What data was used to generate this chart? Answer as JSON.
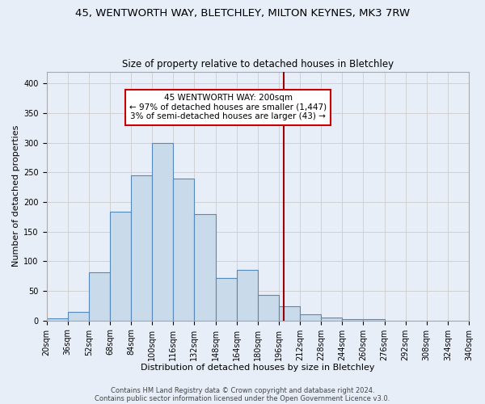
{
  "title1": "45, WENTWORTH WAY, BLETCHLEY, MILTON KEYNES, MK3 7RW",
  "title2": "Size of property relative to detached houses in Bletchley",
  "xlabel": "Distribution of detached houses by size in Bletchley",
  "ylabel": "Number of detached properties",
  "bin_edges": [
    20,
    36,
    52,
    68,
    84,
    100,
    116,
    132,
    148,
    164,
    180,
    196,
    212,
    228,
    244,
    260,
    276,
    292,
    308,
    324,
    340
  ],
  "bars_data": [
    4,
    14,
    81,
    184,
    245,
    300,
    240,
    180,
    72,
    86,
    43,
    24,
    11,
    5,
    3,
    3,
    0,
    0,
    0,
    0
  ],
  "bar_color": "#c9daea",
  "bar_edge_color": "#5588bb",
  "grid_color": "#cccccc",
  "bg_color": "#e8eef8",
  "red_line_x": 200,
  "red_line_color": "#990000",
  "annotation_text": "45 WENTWORTH WAY: 200sqm\n← 97% of detached houses are smaller (1,447)\n3% of semi-detached houses are larger (43) →",
  "annotation_box_color": "#ffffff",
  "annotation_box_edge_color": "#cc0000",
  "footer1": "Contains HM Land Registry data © Crown copyright and database right 2024.",
  "footer2": "Contains public sector information licensed under the Open Government Licence v3.0.",
  "ylim": [
    0,
    420
  ],
  "yticks": [
    0,
    50,
    100,
    150,
    200,
    250,
    300,
    350,
    400
  ],
  "title1_fontsize": 9.5,
  "title2_fontsize": 8.5,
  "xlabel_fontsize": 8,
  "ylabel_fontsize": 8,
  "tick_fontsize": 7,
  "annotation_fontsize": 7.5,
  "footer_fontsize": 6
}
